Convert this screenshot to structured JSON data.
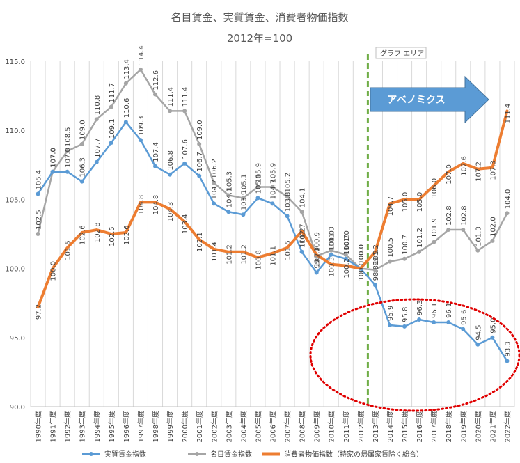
{
  "chart_data": {
    "type": "line",
    "title": "名目賃金、実質賃金、消費者物価指数",
    "subtitle": "2012年=100",
    "xlabel": "",
    "ylabel": "",
    "ylim": [
      90.0,
      115.0
    ],
    "yticks": [
      "90.0",
      "95.0",
      "100.0",
      "105.0",
      "110.0",
      "115.0"
    ],
    "categories": [
      "1990年度",
      "1991年度",
      "1992年度",
      "1993年度",
      "1994年度",
      "1995年度",
      "1996年度",
      "1997年度",
      "1998年度",
      "1999年度",
      "2000年度",
      "2001年度",
      "2002年度",
      "2003年度",
      "2004年度",
      "2005年度",
      "2006年度",
      "2007年度",
      "2008年度",
      "2009年度",
      "2010年度",
      "2011年度",
      "2012年度",
      "2013年度",
      "2014年度",
      "2015年度",
      "2016年度",
      "2017年度",
      "2018年度",
      "2019年度",
      "2020年度",
      "2021年度",
      "2022年度"
    ],
    "series": [
      {
        "name": "実質賃金指数",
        "color": "#5B9BD5",
        "values": [
          105.4,
          107.0,
          107.0,
          106.3,
          107.7,
          109.1,
          110.6,
          109.3,
          107.4,
          106.8,
          107.6,
          106.7,
          104.7,
          104.1,
          103.9,
          105.1,
          104.7,
          103.8,
          101.2,
          99.7,
          101.0,
          100.7,
          100.0,
          98.8,
          95.9,
          95.8,
          96.3,
          96.1,
          96.1,
          95.6,
          94.5,
          95.0,
          93.3
        ],
        "labels": [
          "105.4",
          "107.0",
          "107.0",
          "106.3",
          "107.7",
          "109.1",
          "110.6",
          "109.3",
          "107.4",
          "106.8",
          "107.6",
          "106.7",
          "104.7",
          "104.1",
          "103.9",
          "105.1",
          "104.7",
          "103.8",
          "101.2",
          "99.7",
          "101.0",
          "100.7",
          "100.0",
          "98.8",
          "95.9",
          "95.8",
          "96.3",
          "96.1",
          "96.1",
          "95.6",
          "94.5",
          "95.0",
          "93.3"
        ]
      },
      {
        "name": "名目賃金指数",
        "color": "#A5A5A5",
        "values": [
          102.5,
          107.0,
          108.5,
          109.0,
          110.8,
          111.7,
          113.4,
          114.4,
          112.6,
          111.4,
          111.4,
          109.0,
          106.2,
          105.3,
          105.1,
          105.9,
          105.9,
          105.2,
          104.1,
          100.9,
          101.3,
          101.0,
          100.0,
          99.9,
          100.5,
          100.7,
          101.2,
          101.9,
          102.8,
          102.8,
          101.3,
          102.0,
          104.0
        ],
        "labels": [
          "102.5",
          "107.0",
          "108.5",
          "109.0",
          "110.8",
          "111.7",
          "113.4",
          "114.4",
          "112.6",
          "111.4",
          "111.4",
          "109.0",
          "106.2",
          "105.3",
          "105.1",
          "105.9",
          "105.9",
          "105.2",
          "104.1",
          "100.9",
          "101.3",
          "101.0",
          "100.0",
          "99.9",
          "100.5",
          "100.7",
          "101.2",
          "101.9",
          "102.8",
          "102.8",
          "101.3",
          "102.0",
          "104.0"
        ]
      },
      {
        "name": "消費者物価指数（持家の帰属家賃除く総合）",
        "color": "#ED7D31",
        "values": [
          97.2,
          100.0,
          101.5,
          102.6,
          102.8,
          102.5,
          102.6,
          104.8,
          104.8,
          104.3,
          103.4,
          102.1,
          101.4,
          101.2,
          101.2,
          100.8,
          101.1,
          101.5,
          102.7,
          101.0,
          100.3,
          100.2,
          100.0,
          101.2,
          104.7,
          105.0,
          105.0,
          106.0,
          107.0,
          107.6,
          107.2,
          107.3,
          111.4
        ],
        "labels": [
          "97.2",
          "100.0",
          "101.5",
          "102.6",
          "102.8",
          "102.5",
          "102.6",
          "104.8",
          "104.8",
          "104.3",
          "103.4",
          "102.1",
          "101.4",
          "101.2",
          "101.2",
          "100.8",
          "101.1",
          "101.5",
          "102.7",
          "101.0",
          "100.3",
          "100.2",
          "100.0",
          "101.2",
          "104.7",
          "105.0",
          "105.0",
          "106.0",
          "107.0",
          "107.6",
          "107.2",
          "107.3",
          "111.4"
        ]
      }
    ],
    "annotations": {
      "abenomics_label": "アベノミクス",
      "abenomics_start": "2012年度",
      "area_tag": "グラフ エリア"
    },
    "legend_placement": "bottom",
    "grid": {
      "vertical": true,
      "horizontal": false
    }
  }
}
